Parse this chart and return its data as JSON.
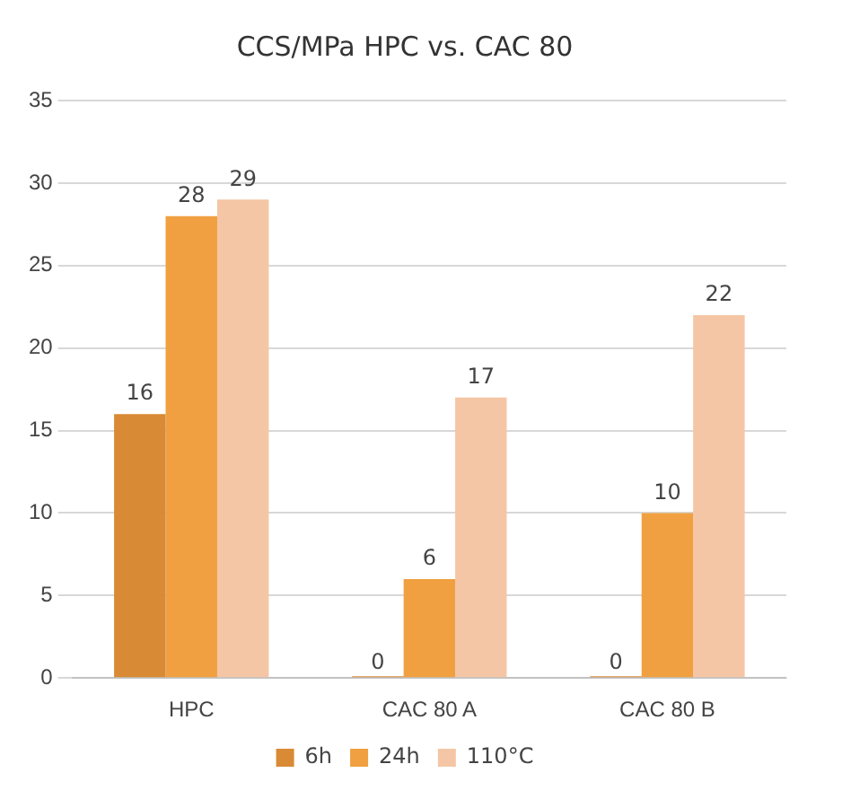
{
  "chart_data": {
    "type": "bar",
    "title": "CCS/MPa HPC vs. CAC 80",
    "categories": [
      "HPC",
      "CAC 80 A",
      "CAC 80 B"
    ],
    "series": [
      {
        "name": "6h",
        "color": "#d98a35",
        "values": [
          16,
          0,
          0
        ]
      },
      {
        "name": "24h",
        "color": "#f0a040",
        "values": [
          28,
          6,
          10
        ]
      },
      {
        "name": "110°C",
        "color": "#f5c6a5",
        "values": [
          29,
          17,
          22
        ]
      }
    ],
    "ylim": [
      0,
      35
    ],
    "yticks": [
      0,
      5,
      10,
      15,
      20,
      25,
      30,
      35
    ],
    "grid": "y",
    "legend": "bottom",
    "data_labels": true
  }
}
